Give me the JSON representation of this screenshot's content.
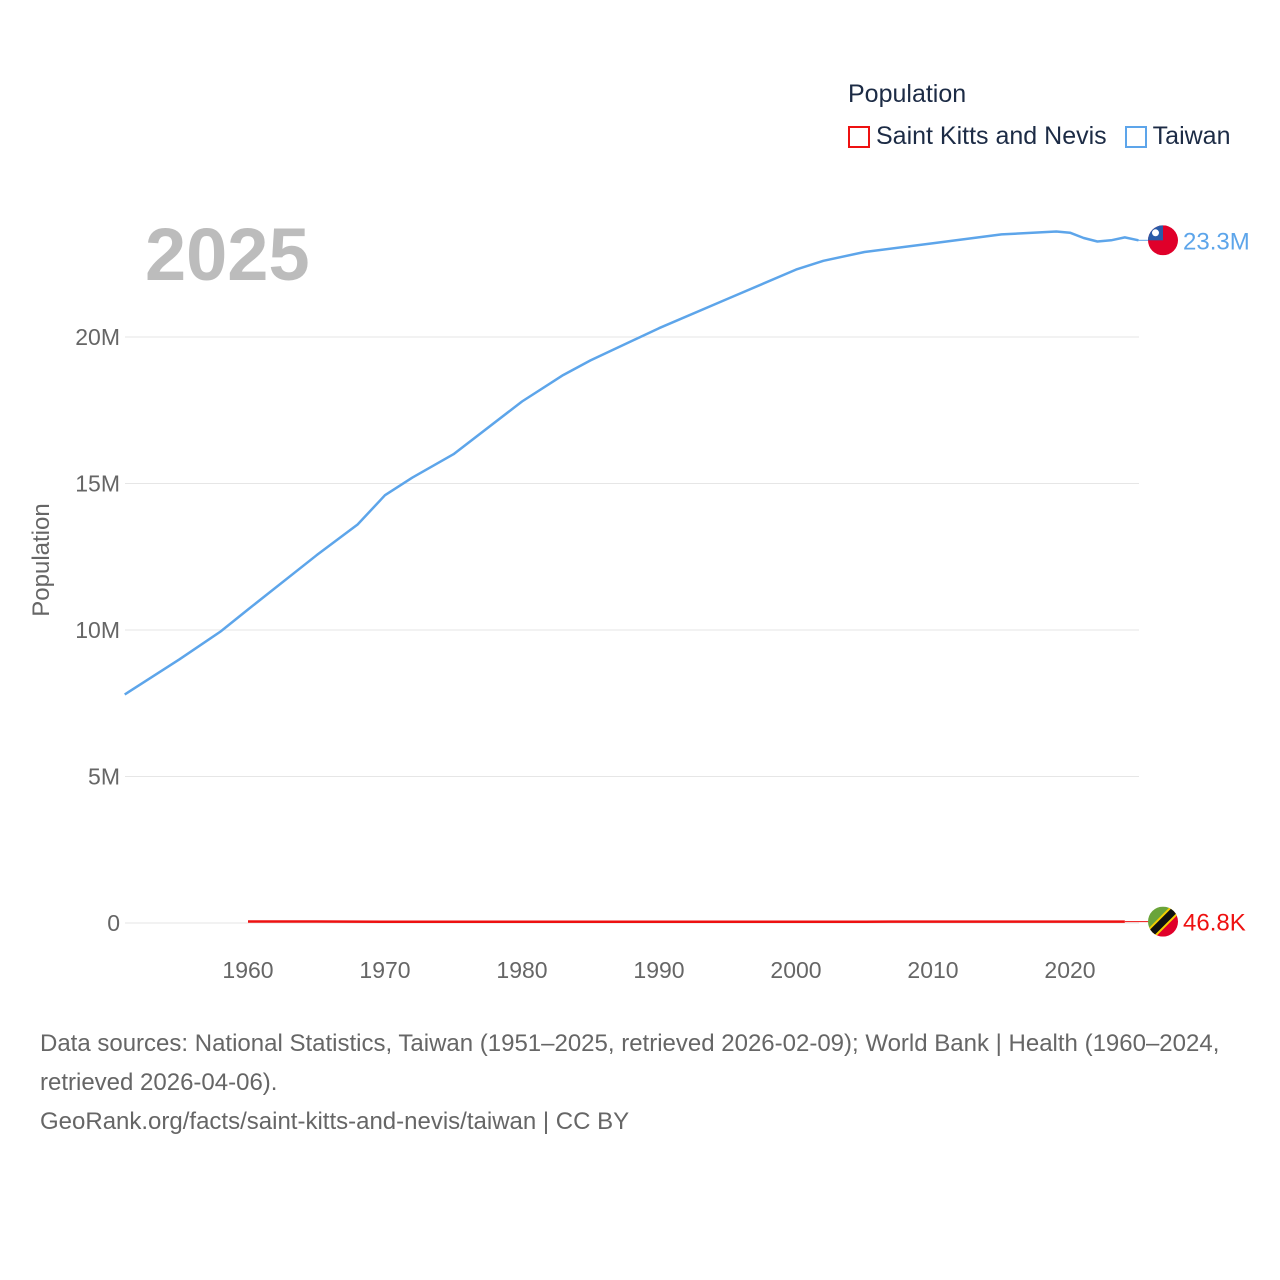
{
  "chart_data": {
    "type": "line",
    "title": "",
    "current_year": "2025",
    "ylabel": "Population",
    "xlabel": "",
    "legend_title": "Population",
    "legend_placement": "top-right",
    "xlim": [
      1951,
      2025
    ],
    "ylim": [
      0,
      24000000
    ],
    "x_ticks": [
      1960,
      1970,
      1980,
      1990,
      2000,
      2010,
      2020
    ],
    "x_tick_labels": [
      "1960",
      "1970",
      "1980",
      "1990",
      "2000",
      "2010",
      "2020"
    ],
    "y_ticks": [
      0,
      5000000,
      10000000,
      15000000,
      20000000
    ],
    "y_tick_labels": [
      "0",
      "5M",
      "10M",
      "15M",
      "20M"
    ],
    "grid": true,
    "series": [
      {
        "name": "Saint Kitts and Nevis",
        "color": "#ee1111",
        "end_label": "46.8K",
        "x": [
          1960,
          1965,
          1970,
          1975,
          1980,
          1985,
          1990,
          1995,
          2000,
          2005,
          2010,
          2015,
          2020,
          2024
        ],
        "values": [
          51000,
          50500,
          45000,
          43000,
          42000,
          41500,
          41000,
          41500,
          44000,
          45500,
          47000,
          48000,
          47600,
          46800
        ]
      },
      {
        "name": "Taiwan",
        "color": "#5da5ea",
        "end_label": "23.3M",
        "x": [
          1951,
          1955,
          1958,
          1960,
          1965,
          1968,
          1970,
          1972,
          1975,
          1980,
          1983,
          1985,
          1990,
          1995,
          2000,
          2002,
          2005,
          2010,
          2015,
          2019,
          2020,
          2021,
          2022,
          2023,
          2024,
          2025
        ],
        "values": [
          7800000,
          9000000,
          9950000,
          10700000,
          12550000,
          13600000,
          14600000,
          15200000,
          16000000,
          17800000,
          18700000,
          19200000,
          20300000,
          21300000,
          22300000,
          22600000,
          22900000,
          23200000,
          23500000,
          23600000,
          23560000,
          23380000,
          23260000,
          23300000,
          23400000,
          23300000
        ]
      }
    ]
  },
  "footer": {
    "sources": "Data sources: National Statistics, Taiwan (1951–2025, retrieved 2026-02-09); World Bank | Health (1960–2024, retrieved 2026-04-06).",
    "attribution": "GeoRank.org/facts/saint-kitts-and-nevis/taiwan | CC BY"
  }
}
